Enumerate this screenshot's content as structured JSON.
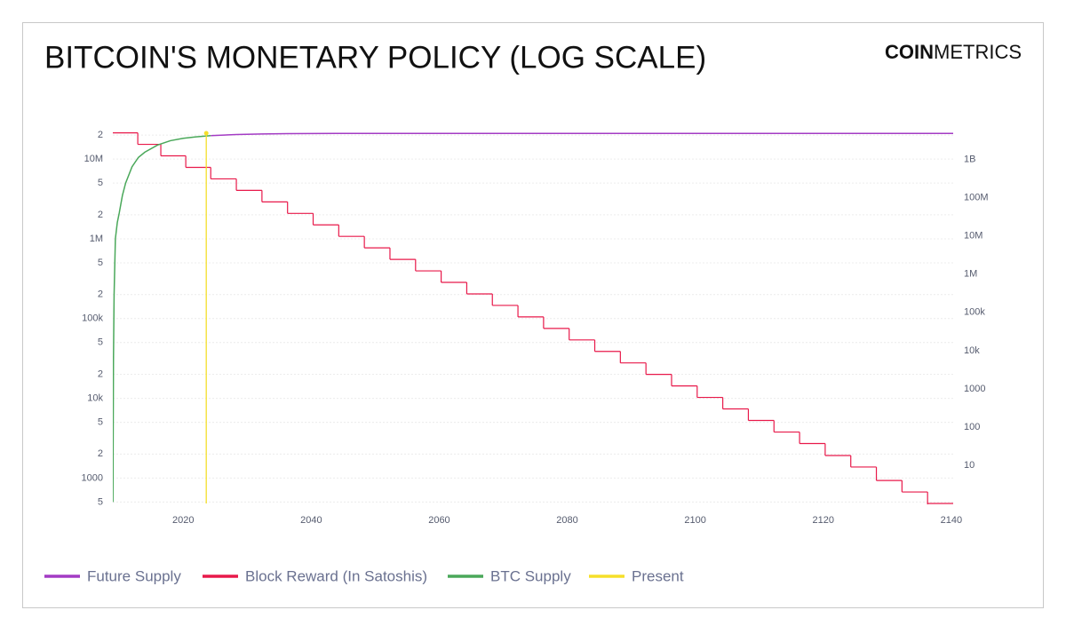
{
  "chart_data": {
    "type": "line",
    "title": "BITCOIN'S MONETARY POLICY (LOG SCALE)",
    "brand": {
      "bold": "COIN",
      "light": "METRICS"
    },
    "log_scale": true,
    "grid": true,
    "xlim": [
      2009,
      2140.3
    ],
    "xticks": [
      2020,
      2040,
      2060,
      2080,
      2100,
      2120,
      2140
    ],
    "ylim": [
      480,
      24000000
    ],
    "yticks": [
      {
        "value": 500,
        "label": "5"
      },
      1000,
      {
        "value": 2000,
        "label": "2"
      },
      {
        "value": 5000,
        "label": "5"
      },
      {
        "value": 10000,
        "label": "10k"
      },
      {
        "value": 20000,
        "label": "2"
      },
      {
        "value": 50000,
        "label": "5"
      },
      {
        "value": 100000,
        "label": "100k"
      },
      {
        "value": 200000,
        "label": "2"
      },
      {
        "value": 500000,
        "label": "5"
      },
      {
        "value": 1000000,
        "label": "1M"
      },
      {
        "value": 2000000,
        "label": "2"
      },
      {
        "value": 5000000,
        "label": "5"
      },
      {
        "value": 10000000,
        "label": "10M"
      },
      {
        "value": 20000000,
        "label": "2"
      }
    ],
    "y2lim": [
      1,
      6400000000
    ],
    "y2ticks": [
      10,
      100,
      1000,
      {
        "value": 10000,
        "label": "10k"
      },
      {
        "value": 100000,
        "label": "100k"
      },
      {
        "value": 1000000,
        "label": "1M"
      },
      {
        "value": 10000000,
        "label": "10M"
      },
      {
        "value": 100000000,
        "label": "100M"
      },
      {
        "value": 1000000000,
        "label": "1B"
      }
    ],
    "legend": "bottom-left",
    "series": [
      {
        "name": "Future Supply",
        "color": "#a33bc4",
        "kind": "line",
        "x": [
          2024.3,
          2028.3,
          2032.3,
          2036.3,
          2044,
          2060,
          2100,
          2140.3
        ],
        "values": [
          19700000,
          20300000,
          20650000,
          20830000,
          20970000,
          21000000,
          21000000,
          21000000
        ]
      },
      {
        "name": "Block Reward (In Satoshis)",
        "color": "#e8194a",
        "kind": "step",
        "axis": "y2",
        "x": [
          2009.0,
          2012.9,
          2016.5,
          2020.4,
          2024.3,
          2028.3,
          2032.3,
          2036.3,
          2040.3,
          2044.3,
          2048.3,
          2052.3,
          2056.3,
          2060.3,
          2064.3,
          2068.3,
          2072.3,
          2076.3,
          2080.3,
          2084.3,
          2088.3,
          2092.3,
          2096.3,
          2100.3,
          2104.3,
          2108.3,
          2112.3,
          2116.3,
          2120.3,
          2124.3,
          2128.3,
          2132.3,
          2136.3
        ],
        "values": [
          5000000000,
          2500000000,
          1250000000,
          625000000,
          312500000,
          156250000,
          78125000,
          39062500,
          19531250,
          9765625,
          4882812,
          2441406,
          1220703,
          610351,
          305175,
          152587,
          76293,
          38146,
          19073,
          9536,
          4768,
          2384,
          1192,
          596,
          298,
          149,
          74,
          37,
          18,
          9,
          4,
          2,
          1
        ]
      },
      {
        "name": "BTC Supply",
        "color": "#4aa85a",
        "kind": "line",
        "x": [
          2009.02,
          2009.1,
          2009.2,
          2009.4,
          2009.7,
          2010,
          2010.5,
          2011,
          2012,
          2013,
          2014,
          2016,
          2018,
          2020,
          2022,
          2024.3
        ],
        "values": [
          500,
          30000,
          200000,
          1000000,
          1600000,
          2100000,
          3500000,
          5000000,
          8000000,
          10500000,
          12200000,
          15000000,
          17000000,
          18200000,
          19000000,
          19700000
        ]
      },
      {
        "name": "Present",
        "color": "#f5df2a",
        "kind": "vline",
        "x": [
          2023.6
        ]
      }
    ]
  }
}
